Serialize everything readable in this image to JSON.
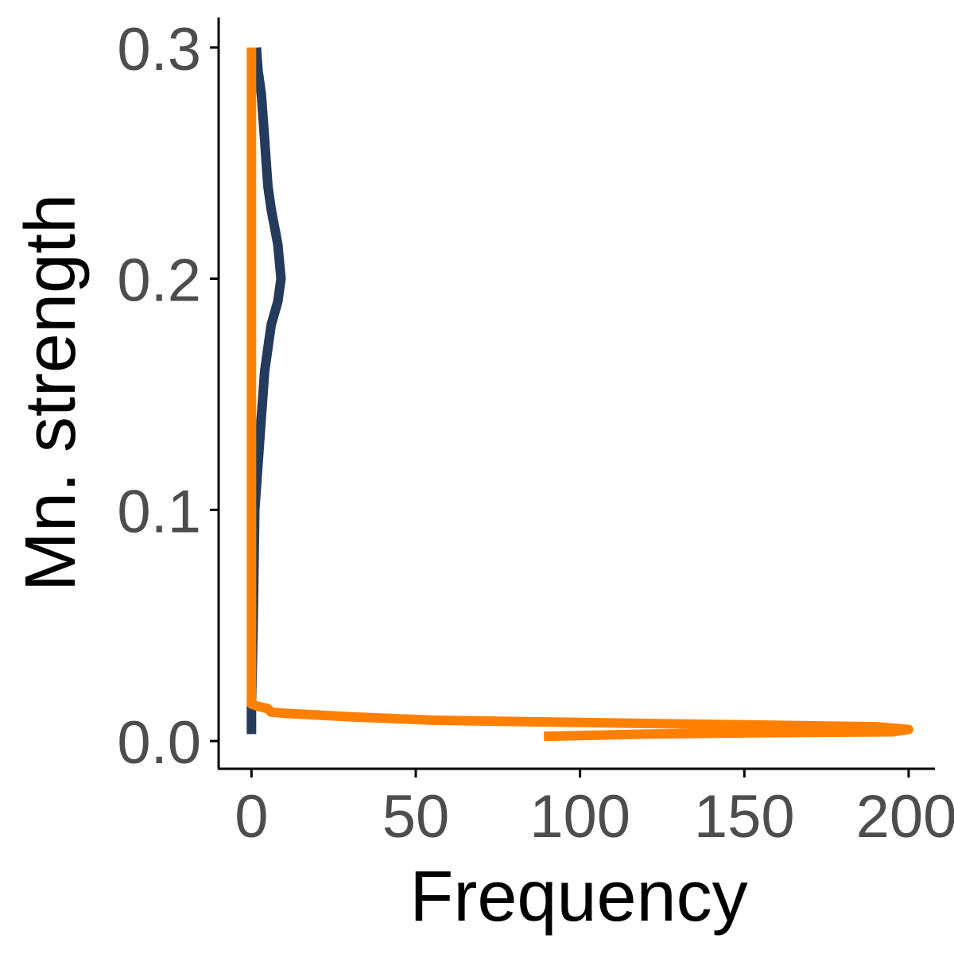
{
  "chart_data": {
    "type": "line",
    "title": "",
    "xlabel": "Frequency",
    "ylabel": "Mn. strength",
    "xlim": [
      -10,
      208
    ],
    "ylim": [
      -0.012,
      0.313
    ],
    "xticks": [
      0,
      50,
      100,
      150,
      200
    ],
    "xtick_labels": [
      "0",
      "50",
      "100",
      "150",
      "200"
    ],
    "yticks": [
      0.0,
      0.1,
      0.2,
      0.3
    ],
    "ytick_labels": [
      "0.0",
      "0.1",
      "0.2",
      "0.3"
    ],
    "grid": false,
    "legend": "none",
    "series": [
      {
        "color": "#253b5c",
        "points": [
          [
            0,
            0.003
          ],
          [
            0,
            0.014
          ],
          [
            0.5,
            0.05
          ],
          [
            1,
            0.1
          ],
          [
            2,
            0.12
          ],
          [
            3,
            0.14
          ],
          [
            4,
            0.16
          ],
          [
            6,
            0.18
          ],
          [
            8,
            0.19
          ],
          [
            9,
            0.2
          ],
          [
            8,
            0.215
          ],
          [
            6,
            0.23
          ],
          [
            5,
            0.24
          ],
          [
            4.5,
            0.25
          ],
          [
            4,
            0.26
          ],
          [
            3.5,
            0.27
          ],
          [
            3,
            0.28
          ],
          [
            2,
            0.29
          ],
          [
            1.5,
            0.3
          ]
        ]
      },
      {
        "color": "#ff8000",
        "points": [
          [
            0,
            0.3
          ],
          [
            0,
            0.2
          ],
          [
            0,
            0.1
          ],
          [
            0,
            0.05
          ],
          [
            0,
            0.016
          ],
          [
            2,
            0.015
          ],
          [
            5,
            0.014
          ],
          [
            6,
            0.0125
          ],
          [
            10,
            0.012
          ],
          [
            30,
            0.0105
          ],
          [
            55,
            0.009
          ],
          [
            100,
            0.008
          ],
          [
            150,
            0.007
          ],
          [
            190,
            0.0062
          ],
          [
            200,
            0.005
          ],
          [
            195,
            0.004
          ],
          [
            150,
            0.0035
          ],
          [
            120,
            0.003
          ],
          [
            89,
            0.002
          ]
        ]
      }
    ]
  }
}
